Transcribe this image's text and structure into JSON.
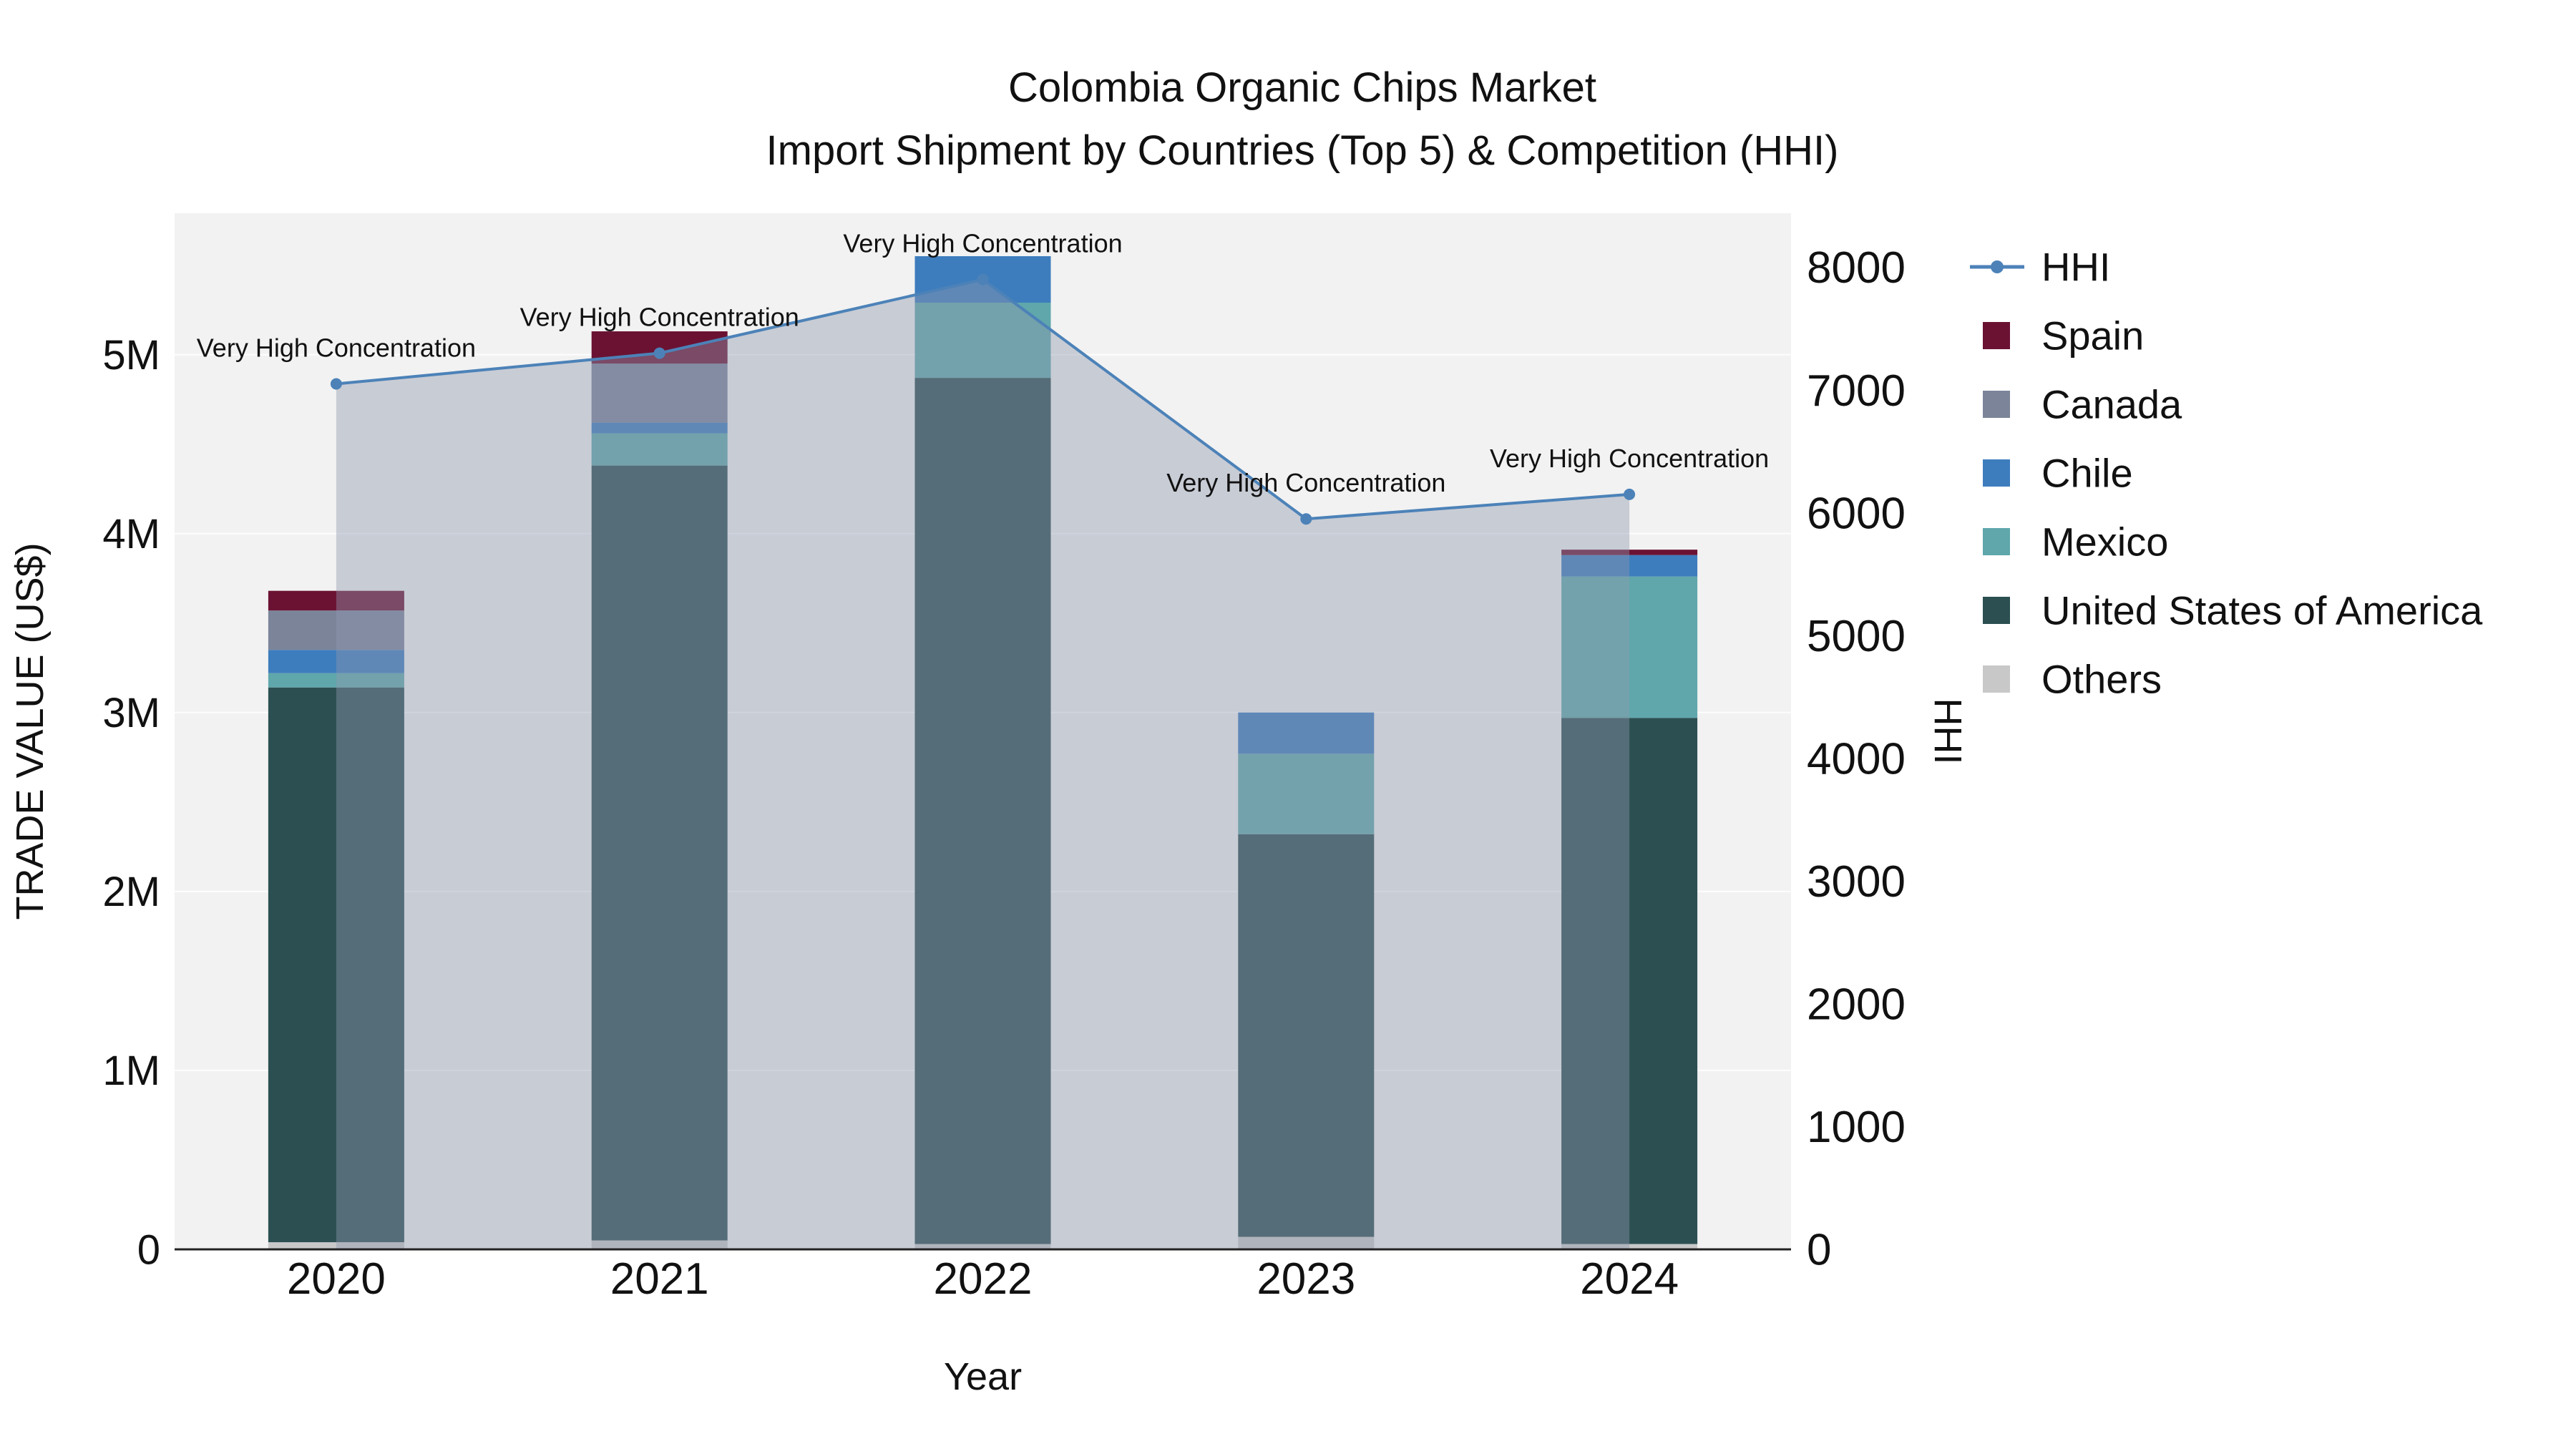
{
  "chart_data": {
    "type": "bar",
    "stacked": true,
    "title": "Colombia Organic Chips Market",
    "subtitle": "Import Shipment by Countries (Top 5) & Competition (HHI)",
    "xlabel": "Year",
    "ylabel_left": "TRADE VALUE (US$)",
    "ylabel_right": "HHI",
    "categories": [
      "2020",
      "2021",
      "2022",
      "2023",
      "2024"
    ],
    "left_axis": {
      "max": 5790000,
      "ticks": [
        {
          "label": "0",
          "value": 0
        },
        {
          "label": "1M",
          "value": 1000000
        },
        {
          "label": "2M",
          "value": 2000000
        },
        {
          "label": "3M",
          "value": 3000000
        },
        {
          "label": "4M",
          "value": 4000000
        },
        {
          "label": "5M",
          "value": 5000000
        }
      ]
    },
    "right_axis": {
      "max": 8440,
      "ticks": [
        {
          "label": "0",
          "value": 0
        },
        {
          "label": "1000",
          "value": 1000
        },
        {
          "label": "2000",
          "value": 2000
        },
        {
          "label": "3000",
          "value": 3000
        },
        {
          "label": "4000",
          "value": 4000
        },
        {
          "label": "5000",
          "value": 5000
        },
        {
          "label": "6000",
          "value": 6000
        },
        {
          "label": "7000",
          "value": 7000
        },
        {
          "label": "8000",
          "value": 8000
        }
      ]
    },
    "bar_series": [
      {
        "name": "Others",
        "color": "#c8c8c8",
        "values": [
          40000,
          50000,
          30000,
          70000,
          30000
        ]
      },
      {
        "name": "United States of America",
        "color": "#2c4f52",
        "values": [
          3100000,
          4330000,
          4840000,
          2250000,
          2940000
        ]
      },
      {
        "name": "Mexico",
        "color": "#5fa7ab",
        "values": [
          80000,
          180000,
          420000,
          450000,
          790000
        ]
      },
      {
        "name": "Chile",
        "color": "#3d7dbd",
        "values": [
          130000,
          60000,
          260000,
          230000,
          120000
        ]
      },
      {
        "name": "Canada",
        "color": "#7b8499",
        "values": [
          220000,
          330000,
          0,
          0,
          0
        ]
      },
      {
        "name": "Spain",
        "color": "#6b1233",
        "values": [
          110000,
          180000,
          0,
          0,
          30000
        ]
      }
    ],
    "line_series": {
      "name": "HHI",
      "color": "#4c82b8",
      "area_color": "#8e99ad",
      "area_opacity": 0.42,
      "values": [
        7050,
        7300,
        7900,
        5950,
        6150
      ]
    },
    "annotations": [
      "Very High Concentration",
      "Very High Concentration",
      "Very High Concentration",
      "Very High Concentration",
      "Very High Concentration"
    ],
    "legend": [
      {
        "name": "HHI",
        "type": "line",
        "color": "#4c82b8"
      },
      {
        "name": "Spain",
        "type": "square",
        "color": "#6b1233"
      },
      {
        "name": "Canada",
        "type": "square",
        "color": "#7b8499"
      },
      {
        "name": "Chile",
        "type": "square",
        "color": "#3d7dbd"
      },
      {
        "name": "Mexico",
        "type": "square",
        "color": "#5fa7ab"
      },
      {
        "name": "United States of America",
        "type": "square",
        "color": "#2c4f52"
      },
      {
        "name": "Others",
        "type": "square",
        "color": "#c8c8c8"
      }
    ],
    "colors": {
      "plot_bg": "#f2f2f2",
      "axis_line": "#222222",
      "gridline": "#ffffff",
      "text": "#111111"
    },
    "legend_position": "right",
    "grid": true
  }
}
